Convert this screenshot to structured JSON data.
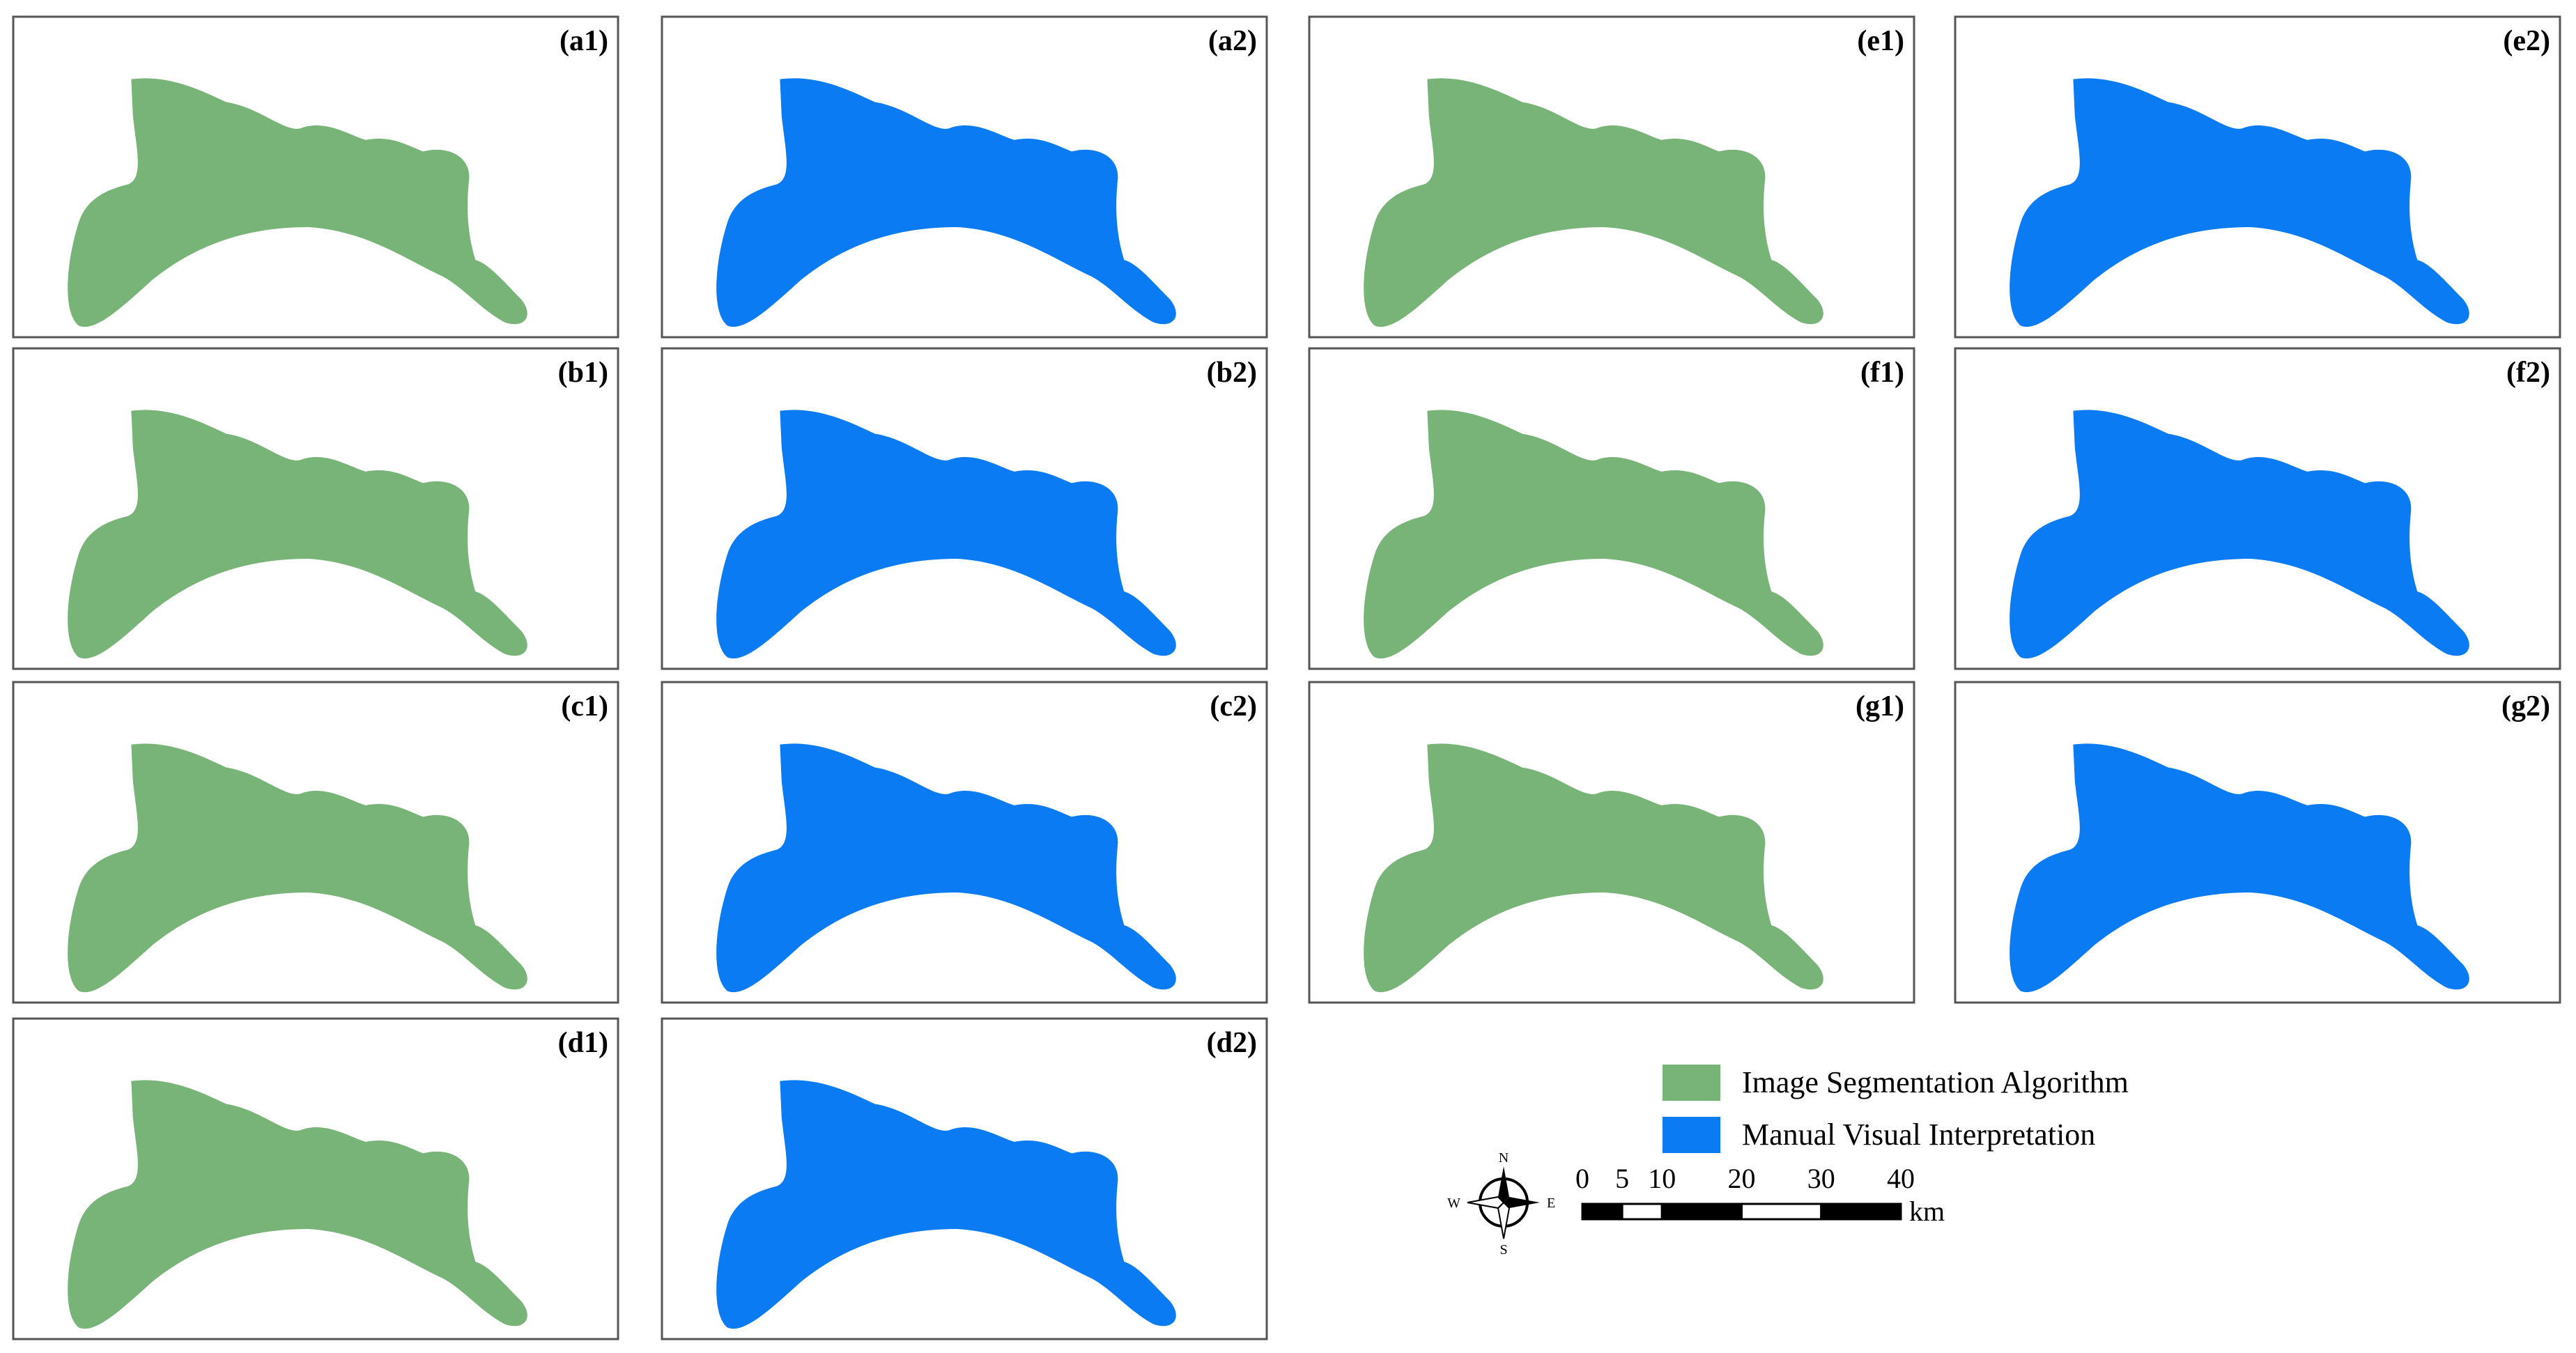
{
  "panels": [
    {
      "label": "(a1)",
      "color": "#78b378"
    },
    {
      "label": "(a2)",
      "color": "#0a7bf2"
    },
    {
      "label": "(b1)",
      "color": "#78b378"
    },
    {
      "label": "(b2)",
      "color": "#0a7bf2"
    },
    {
      "label": "(c1)",
      "color": "#78b378"
    },
    {
      "label": "(c2)",
      "color": "#0a7bf2"
    },
    {
      "label": "(d1)",
      "color": "#78b378"
    },
    {
      "label": "(d2)",
      "color": "#0a7bf2"
    },
    {
      "label": "(e1)",
      "color": "#78b378"
    },
    {
      "label": "(e2)",
      "color": "#0a7bf2"
    },
    {
      "label": "(f1)",
      "color": "#78b378"
    },
    {
      "label": "(f2)",
      "color": "#0a7bf2"
    },
    {
      "label": "(g1)",
      "color": "#78b378"
    },
    {
      "label": "(g2)",
      "color": "#0a7bf2"
    }
  ],
  "legend": [
    {
      "label": "Image Segmentation Algorithm",
      "color": "#78b378"
    },
    {
      "label": "Manual Visual Interpretation",
      "color": "#0a7bf2"
    }
  ],
  "compass": {
    "n": "N",
    "s": "S",
    "e": "E",
    "w": "W"
  },
  "scale_bar": {
    "ticks": [
      0,
      5,
      10,
      20,
      30,
      40
    ],
    "unit": "km"
  }
}
